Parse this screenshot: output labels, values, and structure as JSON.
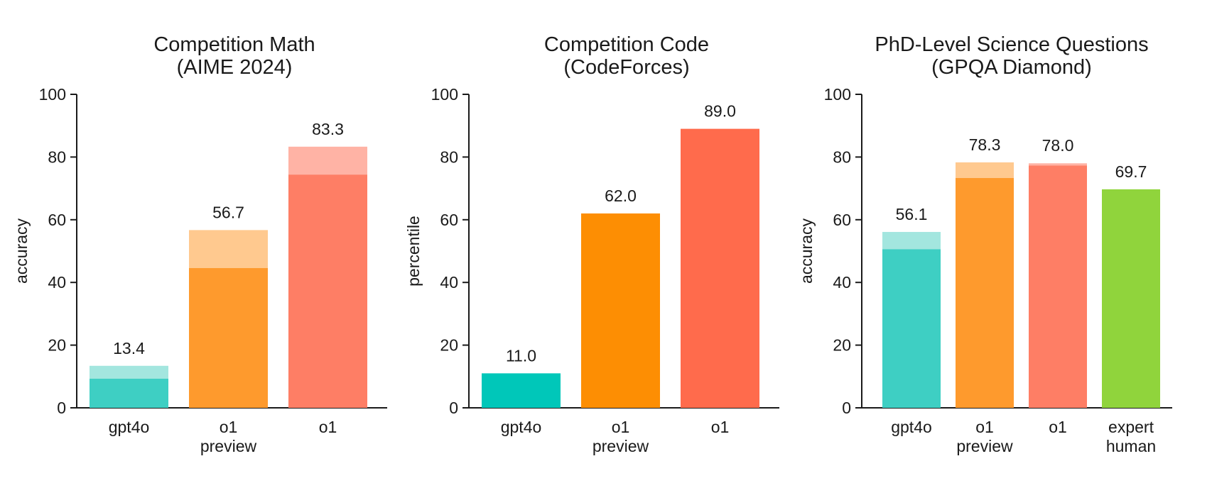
{
  "chart_data": [
    {
      "type": "bar",
      "title": [
        "Competition Math",
        "(AIME 2024)"
      ],
      "ylabel": "accuracy",
      "ylim": [
        0,
        100
      ],
      "yticks": [
        0,
        20,
        40,
        60,
        80,
        100
      ],
      "categories": [
        [
          "gpt4o"
        ],
        [
          "o1",
          "preview"
        ],
        [
          "o1"
        ]
      ],
      "series": [
        {
          "values": [
            9.3,
            44.6,
            74.4
          ]
        },
        {
          "values": [
            13.4,
            56.7,
            83.3
          ]
        }
      ],
      "data_labels": [
        "13.4",
        "56.7",
        "83.3"
      ]
    },
    {
      "type": "bar",
      "title": [
        "Competition Code",
        "(CodeForces)"
      ],
      "ylabel": "percentile",
      "ylim": [
        0,
        100
      ],
      "yticks": [
        0,
        20,
        40,
        60,
        80,
        100
      ],
      "categories": [
        [
          "gpt4o"
        ],
        [
          "o1",
          "preview"
        ],
        [
          "o1"
        ]
      ],
      "series": [
        {
          "values": [
            11.0,
            62.0,
            89.0
          ]
        },
        {
          "values": [
            11.0,
            62.0,
            89.0
          ]
        }
      ],
      "data_labels": [
        "11.0",
        "62.0",
        "89.0"
      ]
    },
    {
      "type": "bar",
      "title": [
        "PhD-Level Science Questions",
        "(GPQA Diamond)"
      ],
      "ylabel": "accuracy",
      "ylim": [
        0,
        100
      ],
      "yticks": [
        0,
        20,
        40,
        60,
        80,
        100
      ],
      "categories": [
        [
          "gpt4o"
        ],
        [
          "o1",
          "preview"
        ],
        [
          "o1"
        ],
        [
          "expert",
          "human"
        ]
      ],
      "series": [
        {
          "values": [
            50.6,
            73.3,
            77.3,
            69.7
          ]
        },
        {
          "values": [
            56.1,
            78.3,
            78.0,
            69.7
          ]
        }
      ],
      "data_labels": [
        "56.1",
        "78.3",
        "78.0",
        "69.7"
      ]
    }
  ],
  "colors": {
    "teal": "#3ecfc3",
    "teal_light": "#a3e6df",
    "orange": "#fe9a2d",
    "orange_light": "#ffc98f",
    "salmon": "#fe7e65",
    "salmon_light": "#ffb3a5",
    "teal_solid": "#00c7b9",
    "orange_solid": "#fd8e03",
    "salmon_solid": "#ff6b4c",
    "green": "#90d43c",
    "axis": "#1a1a1a"
  },
  "bar_colors": [
    [
      [
        "#3ecfc3",
        "#a3e6df"
      ],
      [
        "#fe9a2d",
        "#ffc98f"
      ],
      [
        "#fe7e65",
        "#ffb3a5"
      ]
    ],
    [
      [
        "#00c7b9",
        "#00c7b9"
      ],
      [
        "#fd8e03",
        "#fd8e03"
      ],
      [
        "#ff6b4c",
        "#ff6b4c"
      ]
    ],
    [
      [
        "#3ecfc3",
        "#a3e6df"
      ],
      [
        "#fe9a2d",
        "#ffc98f"
      ],
      [
        "#fe7e65",
        "#ffb3a5"
      ],
      [
        "#90d43c",
        "#90d43c"
      ]
    ]
  ]
}
